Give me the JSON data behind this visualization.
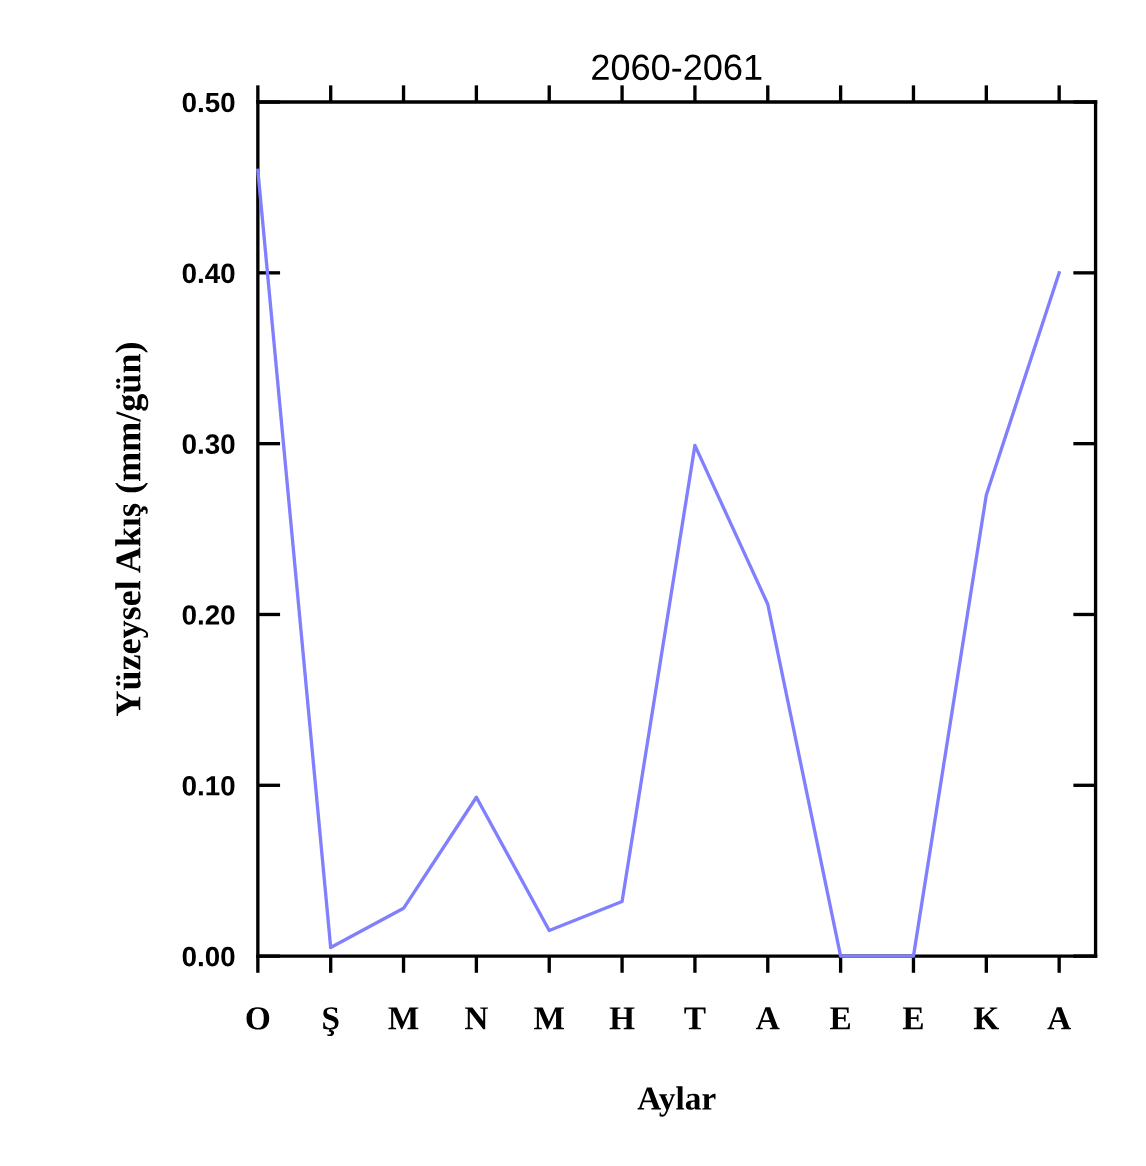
{
  "chart_data": {
    "type": "line",
    "title": "2060-2061",
    "xlabel": "Aylar",
    "ylabel": "Yüzeysel Akış (mm/gün)",
    "categories": [
      "O",
      "Ş",
      "M",
      "N",
      "M",
      "H",
      "T",
      "A",
      "E",
      "E",
      "K",
      "A"
    ],
    "series": [
      {
        "color": "#8080ff",
        "values": [
          0.46,
          0.005,
          0.028,
          0.093,
          0.015,
          0.032,
          0.299,
          0.206,
          0.0,
          0.0,
          0.27,
          0.4
        ]
      }
    ],
    "ylim": [
      0,
      0.5
    ],
    "yticks": [
      {
        "value": 0,
        "label": "0.00"
      },
      {
        "value": 0.1,
        "label": "0.10"
      },
      {
        "value": 0.2,
        "label": "0.20"
      },
      {
        "value": 0.3,
        "label": "0.30"
      },
      {
        "value": 0.4,
        "label": "0.40"
      },
      {
        "value": 0.5,
        "label": "0.50"
      }
    ],
    "grid": false,
    "legend": false,
    "marker": "none",
    "line_style": "solid"
  }
}
